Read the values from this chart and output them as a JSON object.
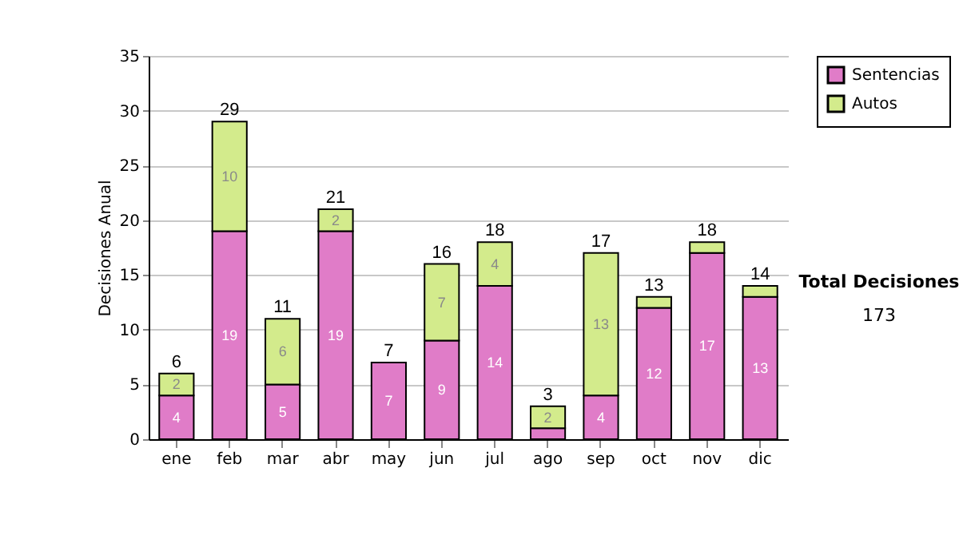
{
  "chart_data": {
    "type": "bar",
    "stacked": true,
    "ylabel": "Decisiones Anual",
    "categories": [
      "ene",
      "feb",
      "mar",
      "abr",
      "may",
      "jun",
      "jul",
      "ago",
      "sep",
      "oct",
      "nov",
      "dic"
    ],
    "series": [
      {
        "name": "Sentencias",
        "color": "#e07cc8",
        "values": [
          4,
          19,
          5,
          19,
          7,
          9,
          14,
          1,
          4,
          12,
          17,
          13
        ],
        "value_labels": [
          "4",
          "19",
          "5",
          "19",
          "7",
          "9",
          "14",
          null,
          "4",
          "12",
          "17",
          "13"
        ]
      },
      {
        "name": "Autos",
        "color": "#d3eb8c",
        "values": [
          2,
          10,
          6,
          2,
          null,
          7,
          4,
          2,
          13,
          1,
          1,
          1
        ],
        "value_labels": [
          "2",
          "10",
          "6",
          "2",
          null,
          "7",
          "4",
          "2",
          "13",
          null,
          null,
          null
        ]
      }
    ],
    "totals": [
      "6",
      "29",
      "11",
      "21",
      "7",
      "16",
      "18",
      "3",
      "17",
      "13",
      "18",
      "14"
    ],
    "ylim": [
      0,
      35
    ],
    "yticks": [
      0,
      5,
      10,
      15,
      20,
      25,
      30,
      35
    ],
    "grid": "y",
    "legend": "right",
    "annotations": [
      "Total Decisiones",
      "173"
    ]
  }
}
